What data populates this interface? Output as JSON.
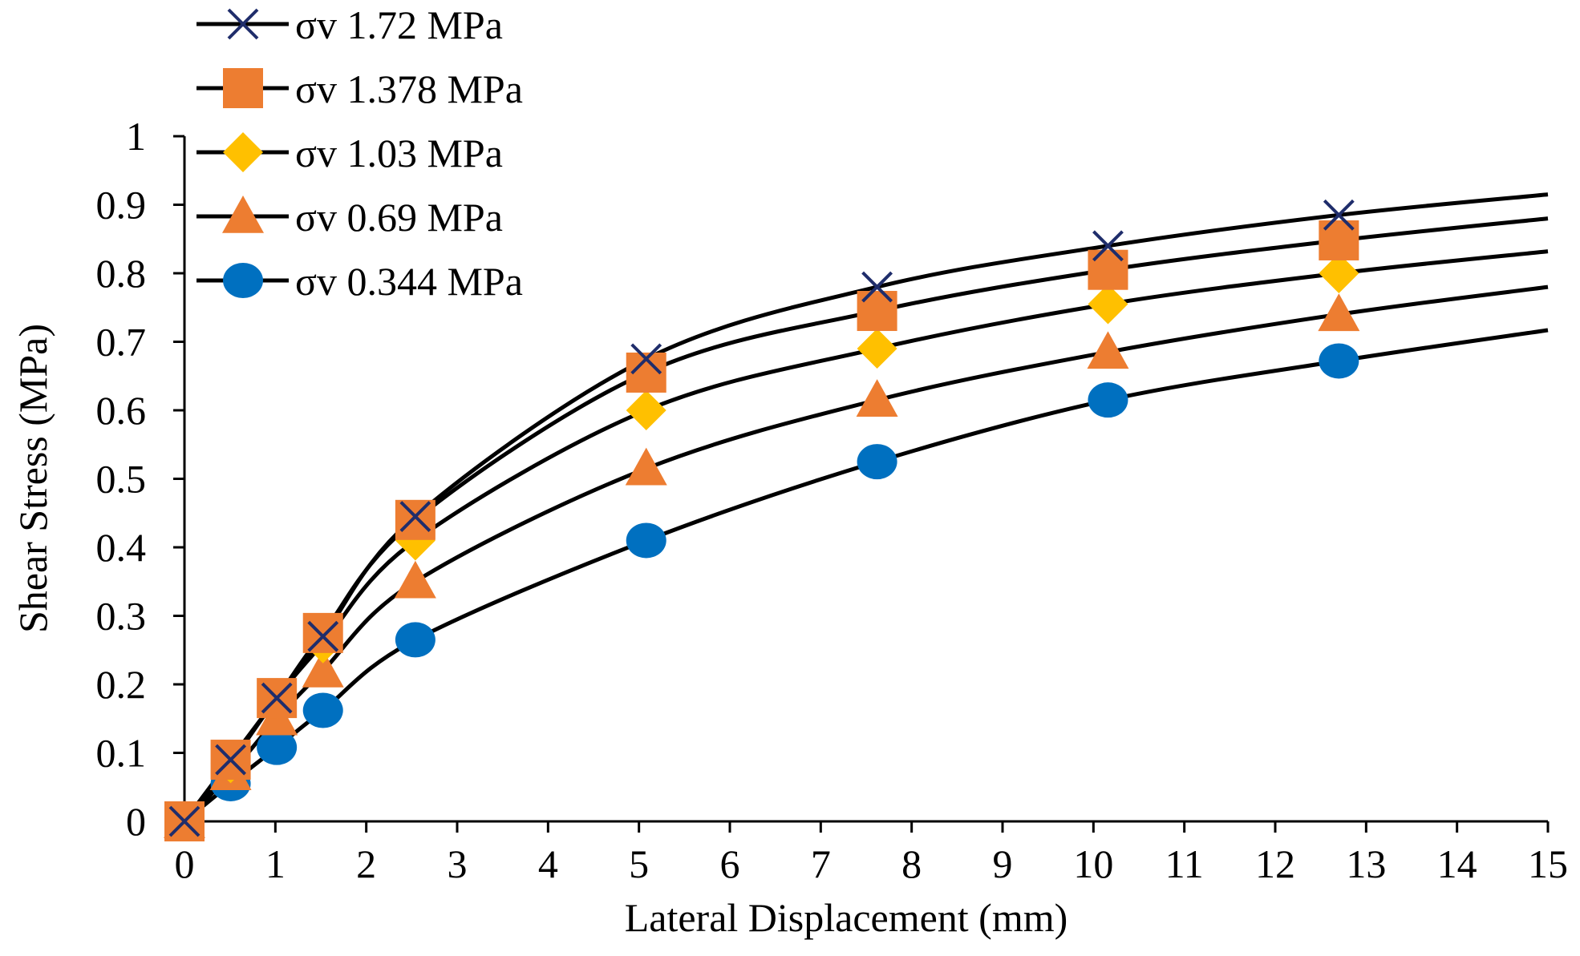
{
  "chart_data": {
    "type": "line",
    "title": "",
    "xlabel": "Lateral Displacement (mm)",
    "ylabel": "Shear Stress (MPa)",
    "xlim": [
      0,
      15
    ],
    "ylim": [
      0,
      1
    ],
    "x_ticks": [
      "0",
      "1",
      "2",
      "3",
      "4",
      "5",
      "6",
      "7",
      "8",
      "9",
      "10",
      "11",
      "12",
      "13",
      "14",
      "15"
    ],
    "y_ticks": [
      "0",
      "0.1",
      "0.2",
      "0.3",
      "0.4",
      "0.5",
      "0.6",
      "0.7",
      "0.8",
      "0.9",
      "1"
    ],
    "grid": false,
    "legend_position": "top-left",
    "x": [
      0,
      0.508,
      1.016,
      1.524,
      2.54,
      5.08,
      7.62,
      10.16,
      12.7
    ],
    "line_color": "#000000",
    "series": [
      {
        "name": "σv  1.72 MPa",
        "marker": "x",
        "marker_color": "#1f2d6b",
        "values": [
          0,
          0.09,
          0.18,
          0.27,
          0.445,
          0.675,
          0.78,
          0.84,
          0.885
        ],
        "trend_end": 0.915
      },
      {
        "name": "σv  1.378 MPa",
        "marker": "square",
        "marker_color": "#ed7d31",
        "values": [
          0,
          0.09,
          0.18,
          0.275,
          0.44,
          0.655,
          0.745,
          0.805,
          0.848
        ],
        "trend_end": 0.88
      },
      {
        "name": "σv  1.03 MPa",
        "marker": "diamond",
        "marker_color": "#ffc000",
        "values": [
          0,
          0.085,
          0.18,
          0.26,
          0.41,
          0.6,
          0.69,
          0.755,
          0.8
        ],
        "trend_end": 0.832
      },
      {
        "name": "σv  0.69 MPa",
        "marker": "triangle",
        "marker_color": "#ed7d31",
        "values": [
          0,
          0.07,
          0.15,
          0.22,
          0.35,
          0.515,
          0.615,
          0.685,
          0.74
        ],
        "trend_end": 0.78
      },
      {
        "name": "σv  0.344 MPa",
        "marker": "circle",
        "marker_color": "#0070c0",
        "values": [
          0,
          0.055,
          0.108,
          0.162,
          0.265,
          0.41,
          0.525,
          0.615,
          0.672
        ],
        "trend_end": 0.717
      }
    ]
  }
}
